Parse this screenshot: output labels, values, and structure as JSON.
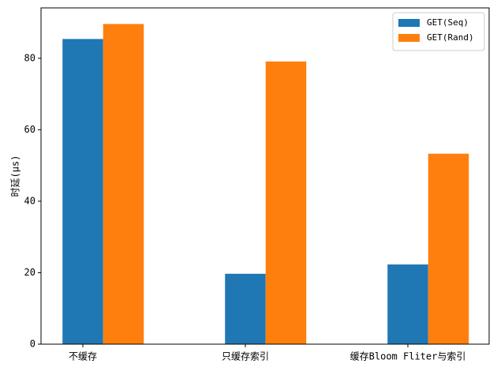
{
  "chart_data": {
    "type": "bar",
    "y_label": "时延(μs)",
    "categories": [
      "不缓存",
      "只缓存索引",
      "缓存Bloom Fliter与索引"
    ],
    "series": [
      {
        "name": "GET(Seq)",
        "color": "#1f77b4",
        "values": [
          85.4,
          19.7,
          22.3
        ]
      },
      {
        "name": "GET(Rand)",
        "color": "#ff7f0e",
        "values": [
          89.6,
          79.1,
          53.3
        ]
      }
    ],
    "ylim": [
      0,
      94.1
    ],
    "yticks": [
      0,
      20,
      40,
      60,
      80
    ],
    "legend": "upper right"
  }
}
